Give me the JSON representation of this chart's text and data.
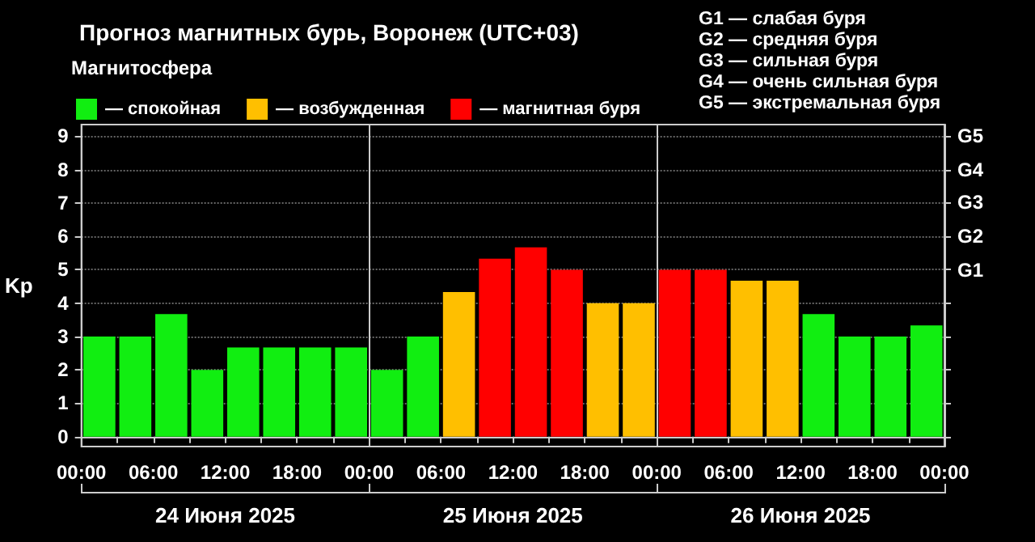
{
  "chart_data": {
    "type": "bar",
    "title": "Прогноз магнитных бурь, Воронеж (UTC+03)",
    "ylabel": "Kp",
    "legend_title": "Магнитосфера",
    "x": [
      "2025-06-24T01:30",
      "2025-06-24T04:30",
      "2025-06-24T07:30",
      "2025-06-24T10:30",
      "2025-06-24T13:30",
      "2025-06-24T16:30",
      "2025-06-24T19:30",
      "2025-06-24T22:30",
      "2025-06-25T01:30",
      "2025-06-25T04:30",
      "2025-06-25T07:30",
      "2025-06-25T10:30",
      "2025-06-25T13:30",
      "2025-06-25T16:30",
      "2025-06-25T19:30",
      "2025-06-25T22:30",
      "2025-06-26T01:30",
      "2025-06-26T04:30",
      "2025-06-26T07:30",
      "2025-06-26T10:30",
      "2025-06-26T13:30",
      "2025-06-26T16:30",
      "2025-06-26T19:30",
      "2025-06-26T22:30"
    ],
    "series": [
      {
        "name": "— спокойная",
        "color": "#11ee11",
        "values": [
          3,
          3,
          3.67,
          2,
          2.67,
          2.67,
          2.67,
          2.67,
          2,
          3,
          null,
          null,
          null,
          null,
          null,
          null,
          null,
          null,
          null,
          null,
          3.67,
          3,
          3,
          3.33
        ]
      },
      {
        "name": "— возбужденная",
        "color": "#ffbf00",
        "values": [
          null,
          null,
          null,
          null,
          null,
          null,
          null,
          null,
          null,
          null,
          4.33,
          null,
          null,
          null,
          4,
          4,
          null,
          null,
          4.67,
          4.67,
          null,
          null,
          null,
          null
        ]
      },
      {
        "name": "— магнитная буря",
        "color": "#ff0000",
        "values": [
          null,
          null,
          null,
          null,
          null,
          null,
          null,
          null,
          null,
          null,
          null,
          5.33,
          5.67,
          5,
          null,
          null,
          5,
          5,
          null,
          null,
          null,
          null,
          null,
          null
        ]
      }
    ],
    "xlim": [
      "2025-06-24T00:00",
      "2025-06-27T00:00"
    ],
    "xticks": [
      {
        "value": "2025-06-24T00:00",
        "label": "00:00"
      },
      {
        "value": "2025-06-24T03:00",
        "label": null
      },
      {
        "value": "2025-06-24T06:00",
        "label": "06:00"
      },
      {
        "value": "2025-06-24T09:00",
        "label": null
      },
      {
        "value": "2025-06-24T12:00",
        "label": "12:00"
      },
      {
        "value": "2025-06-24T15:00",
        "label": null
      },
      {
        "value": "2025-06-24T18:00",
        "label": "18:00"
      },
      {
        "value": "2025-06-24T21:00",
        "label": null
      },
      {
        "value": "2025-06-25T00:00",
        "label": "00:00"
      },
      {
        "value": "2025-06-25T03:00",
        "label": null
      },
      {
        "value": "2025-06-25T06:00",
        "label": "06:00"
      },
      {
        "value": "2025-06-25T09:00",
        "label": null
      },
      {
        "value": "2025-06-25T12:00",
        "label": "12:00"
      },
      {
        "value": "2025-06-25T15:00",
        "label": null
      },
      {
        "value": "2025-06-25T18:00",
        "label": "18:00"
      },
      {
        "value": "2025-06-25T21:00",
        "label": null
      },
      {
        "value": "2025-06-26T00:00",
        "label": "00:00"
      },
      {
        "value": "2025-06-26T03:00",
        "label": null
      },
      {
        "value": "2025-06-26T06:00",
        "label": "06:00"
      },
      {
        "value": "2025-06-26T09:00",
        "label": null
      },
      {
        "value": "2025-06-26T12:00",
        "label": "12:00"
      },
      {
        "value": "2025-06-26T15:00",
        "label": null
      },
      {
        "value": "2025-06-26T18:00",
        "label": "18:00"
      },
      {
        "value": "2025-06-26T21:00",
        "label": null
      },
      {
        "value": "2025-06-27T00:00",
        "label": "00:00"
      }
    ],
    "ylim": [
      -0.3,
      9.35
    ],
    "yticks": [
      0,
      1,
      2,
      3,
      4,
      5,
      6,
      7,
      8,
      9
    ],
    "ref_lines": [
      {
        "axis": "x",
        "value": "2025-06-25T00:00",
        "color": "#cccccc"
      },
      {
        "axis": "x",
        "value": "2025-06-26T00:00",
        "color": "#cccccc"
      }
    ],
    "annotations": [
      "G1 — слабая буря",
      "G2 — средняя буря",
      "G3 — сильная буря",
      "G4 — очень сильная буря",
      "G5 — экстремальная буря",
      "24 Июня 2025",
      "25 Июня 2025",
      "26 Июня 2025",
      "G5",
      "G4",
      "G3",
      "G2",
      "G1"
    ],
    "grid": "y",
    "legend": "top left"
  }
}
